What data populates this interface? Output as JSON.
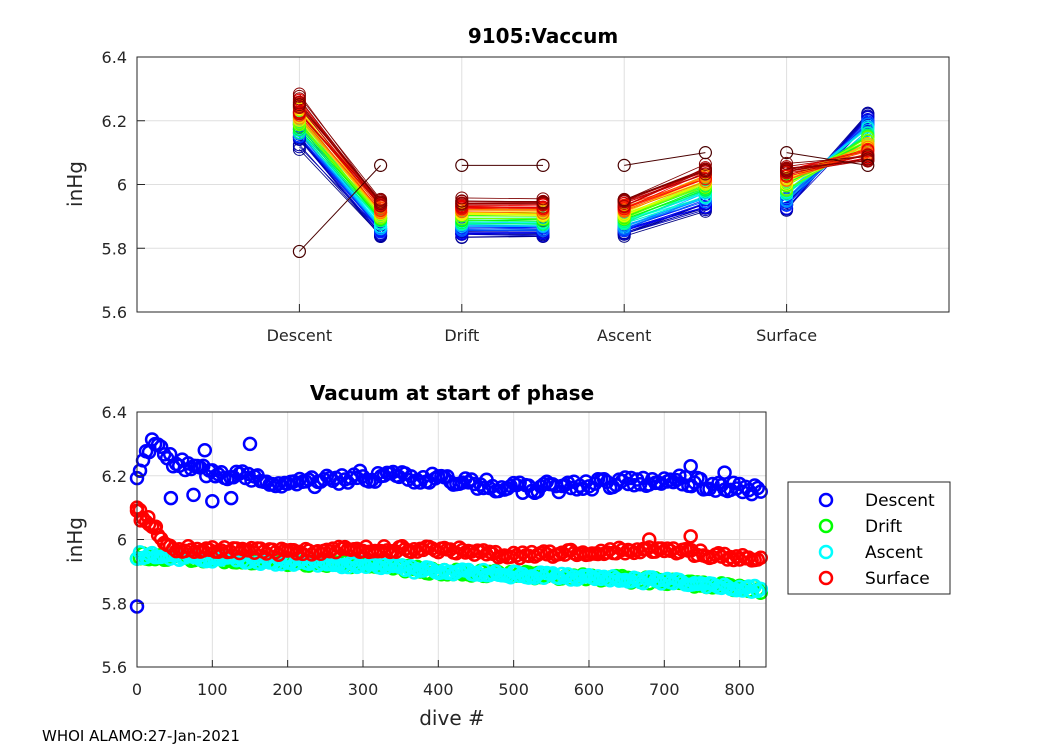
{
  "footer": "WHOI ALAMO:27-Jan-2021",
  "chart_data": [
    {
      "type": "line",
      "title": "9105:Vaccum",
      "ylabel": "inHg",
      "xlabel": "",
      "ylim": [
        5.6,
        6.4
      ],
      "yticks": [
        "5.6",
        "5.8",
        "6",
        "6.2",
        "6.4"
      ],
      "categories": [
        "Descent",
        "Drift",
        "Ascent",
        "Surface"
      ],
      "grid": true,
      "description_of_series": "one profile line per dive, colored dark blue (early) to dark red (late); each phase shows start and end vacuum",
      "phase_ranges": {
        "Descent": {
          "start": [
            6.11,
            6.31
          ],
          "end": [
            5.83,
            5.96
          ]
        },
        "Drift": {
          "start": [
            5.83,
            5.96
          ],
          "end": [
            5.83,
            5.96
          ]
        },
        "Ascent": {
          "start": [
            5.83,
            5.96
          ],
          "end": [
            5.91,
            6.07
          ]
        },
        "Surface": {
          "start": [
            5.91,
            6.07
          ],
          "end": [
            6.05,
            6.23
          ]
        }
      },
      "outlier_dive": {
        "Descent": [
          5.79,
          6.06
        ],
        "Drift": [
          6.06,
          6.06
        ],
        "Ascent": [
          6.06,
          6.1
        ],
        "Surface": [
          6.1,
          6.06
        ]
      }
    },
    {
      "type": "scatter",
      "title": "Vacuum at start of phase",
      "xlabel": "dive #",
      "ylabel": "inHg",
      "xlim": [
        0,
        835
      ],
      "ylim": [
        5.6,
        6.4
      ],
      "xticks": [
        "0",
        "100",
        "200",
        "300",
        "400",
        "500",
        "600",
        "700",
        "800"
      ],
      "yticks": [
        "5.6",
        "5.8",
        "6",
        "6.2",
        "6.4"
      ],
      "grid": true,
      "legend_position": "outside-right",
      "series": [
        {
          "name": "Descent",
          "color": "#0000ff",
          "trend": [
            [
              0,
              6.21
            ],
            [
              20,
              6.3
            ],
            [
              50,
              6.24
            ],
            [
              100,
              6.21
            ],
            [
              150,
              6.2
            ],
            [
              200,
              6.17
            ],
            [
              300,
              6.2
            ],
            [
              400,
              6.19
            ],
            [
              500,
              6.16
            ],
            [
              600,
              6.17
            ],
            [
              700,
              6.19
            ],
            [
              800,
              6.16
            ],
            [
              835,
              6.15
            ]
          ],
          "outliers": [
            [
              0,
              5.79
            ],
            [
              45,
              6.13
            ],
            [
              75,
              6.14
            ],
            [
              100,
              6.12
            ],
            [
              125,
              6.13
            ],
            [
              150,
              6.3
            ],
            [
              90,
              6.28
            ],
            [
              735,
              6.23
            ],
            [
              780,
              6.21
            ]
          ]
        },
        {
          "name": "Drift",
          "color": "#00ff00",
          "trend": [
            [
              0,
              5.95
            ],
            [
              100,
              5.94
            ],
            [
              200,
              5.93
            ],
            [
              300,
              5.92
            ],
            [
              400,
              5.9
            ],
            [
              500,
              5.89
            ],
            [
              600,
              5.88
            ],
            [
              700,
              5.87
            ],
            [
              800,
              5.85
            ],
            [
              835,
              5.84
            ]
          ],
          "outliers": []
        },
        {
          "name": "Ascent",
          "color": "#00ffff",
          "trend": [
            [
              0,
              5.95
            ],
            [
              100,
              5.94
            ],
            [
              200,
              5.93
            ],
            [
              300,
              5.92
            ],
            [
              400,
              5.9
            ],
            [
              500,
              5.89
            ],
            [
              600,
              5.88
            ],
            [
              700,
              5.87
            ],
            [
              800,
              5.85
            ],
            [
              835,
              5.84
            ]
          ],
          "outliers": []
        },
        {
          "name": "Surface",
          "color": "#ff0000",
          "trend": [
            [
              0,
              6.1
            ],
            [
              10,
              6.06
            ],
            [
              25,
              6.03
            ],
            [
              45,
              5.97
            ],
            [
              100,
              5.97
            ],
            [
              200,
              5.96
            ],
            [
              300,
              5.97
            ],
            [
              400,
              5.97
            ],
            [
              500,
              5.95
            ],
            [
              600,
              5.96
            ],
            [
              700,
              5.97
            ],
            [
              800,
              5.94
            ],
            [
              835,
              5.95
            ]
          ],
          "outliers": [
            [
              0,
              6.1
            ],
            [
              5,
              6.06
            ],
            [
              15,
              6.07
            ],
            [
              25,
              6.04
            ],
            [
              680,
              6.0
            ],
            [
              735,
              6.01
            ]
          ]
        }
      ]
    }
  ]
}
